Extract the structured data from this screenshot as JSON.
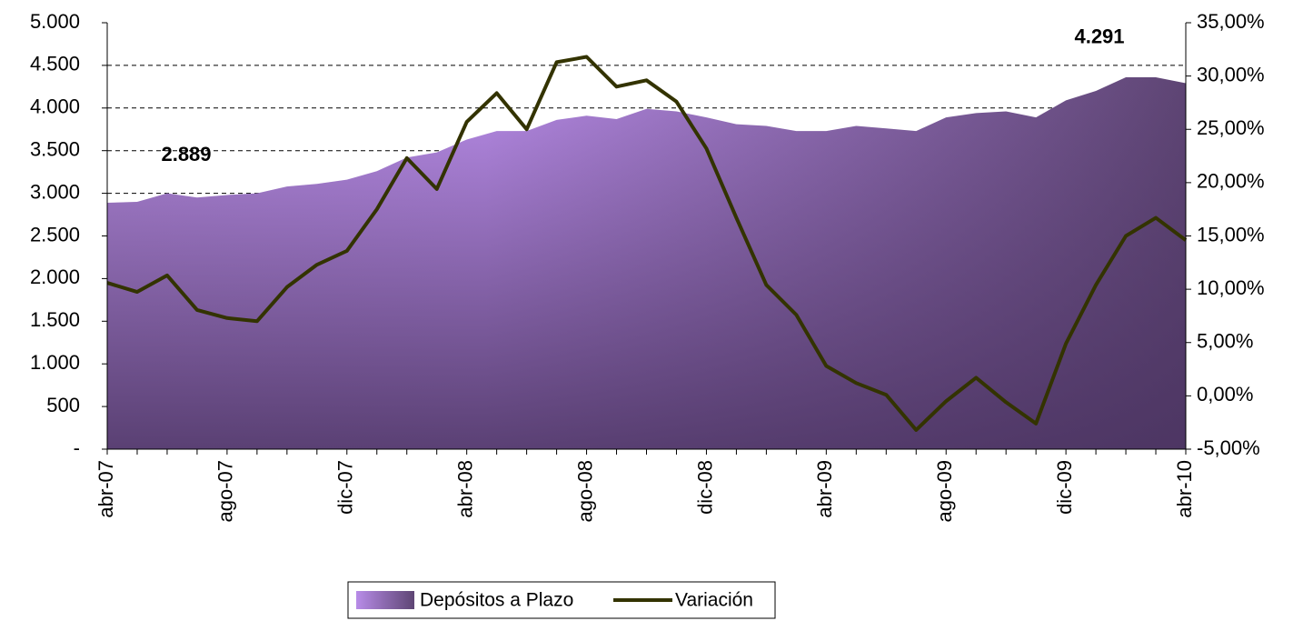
{
  "chart_data": {
    "type": "area-line",
    "categories": [
      "abr-07",
      null,
      null,
      null,
      "ago-07",
      null,
      null,
      null,
      "dic-07",
      null,
      null,
      null,
      "abr-08",
      null,
      null,
      null,
      "ago-08",
      null,
      null,
      null,
      "dic-08",
      null,
      null,
      null,
      "abr-09",
      null,
      null,
      null,
      "ago-09",
      null,
      null,
      null,
      "dic-09",
      null,
      null,
      null,
      "abr-10"
    ],
    "series": [
      {
        "name": "Depósitos a Plazo",
        "color": "#9b6fcc",
        "type": "area",
        "values": [
          2889,
          2900,
          3000,
          2950,
          2980,
          3000,
          3080,
          3110,
          3160,
          3260,
          3420,
          3480,
          3630,
          3730,
          3730,
          3860,
          3910,
          3870,
          3990,
          3960,
          3890,
          3810,
          3790,
          3730,
          3730,
          3790,
          3760,
          3730,
          3890,
          3940,
          3960,
          3890,
          4090,
          4200,
          4360,
          4360,
          4291
        ],
        "value_labels": [
          "2.889",
          null,
          null,
          null,
          null,
          null,
          null,
          null,
          null,
          null,
          null,
          null,
          null,
          null,
          null,
          null,
          null,
          null,
          null,
          null,
          null,
          null,
          null,
          null,
          null,
          null,
          null,
          null,
          null,
          null,
          null,
          null,
          null,
          null,
          null,
          null,
          "4.291"
        ]
      },
      {
        "name": "Variación",
        "color": "#333300",
        "type": "line",
        "axis": "y2",
        "values": [
          10.6,
          9.75,
          11.3,
          8.05,
          7.3,
          7.0,
          10.2,
          12.3,
          13.6,
          17.5,
          22.3,
          19.4,
          25.7,
          28.4,
          25.0,
          31.3,
          31.8,
          29.0,
          29.6,
          27.6,
          23.2,
          16.7,
          10.4,
          7.6,
          2.8,
          1.2,
          0.1,
          -3.2,
          -0.5,
          1.7,
          -0.6,
          -2.6,
          4.9,
          10.4,
          15.0,
          16.7,
          14.6
        ]
      }
    ],
    "ylim": [
      0,
      5000
    ],
    "yticks": [
      {
        "value": 0,
        "label": "-"
      },
      500,
      {
        "value": 1000,
        "label": "1.000"
      },
      {
        "value": 1500,
        "label": "1.500"
      },
      {
        "value": 2000,
        "label": "2.000"
      },
      {
        "value": 2500,
        "label": "2.500"
      },
      {
        "value": 3000,
        "label": "3.000"
      },
      {
        "value": 3500,
        "label": "3.500"
      },
      {
        "value": 4000,
        "label": "4.000"
      },
      {
        "value": 4500,
        "label": "4.500"
      },
      {
        "value": 5000,
        "label": "5.000"
      }
    ],
    "y2lim": [
      -5,
      35
    ],
    "y2ticks": [
      {
        "value": -5,
        "label": "-5,00%"
      },
      {
        "value": 0,
        "label": "0,00%"
      },
      {
        "value": 5,
        "label": "5,00%"
      },
      {
        "value": 10,
        "label": "10,00%"
      },
      {
        "value": 15,
        "label": "15,00%"
      },
      {
        "value": 20,
        "label": "20,00%"
      },
      {
        "value": 25,
        "label": "25,00%"
      },
      {
        "value": 30,
        "label": "30,00%"
      },
      {
        "value": 35,
        "label": "35,00%"
      }
    ],
    "grid": true,
    "legend": "bottom"
  }
}
